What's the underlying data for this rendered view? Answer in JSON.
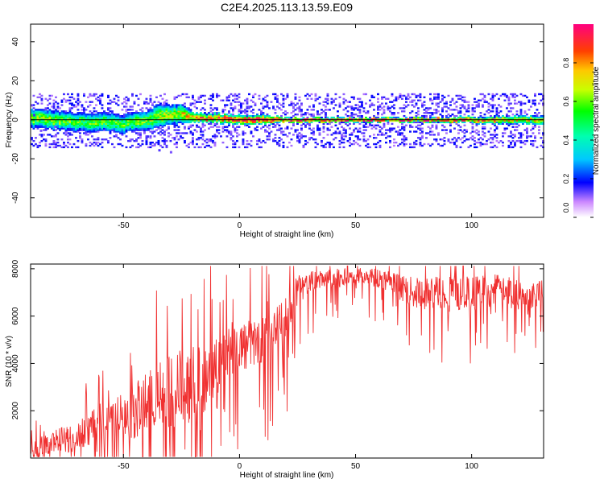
{
  "title": "C2E4.2025.113.13.59.E09",
  "chart_data": [
    {
      "type": "heatmap",
      "xlabel": "Height of straight line (km)",
      "ylabel": "Frequency (Hz)",
      "xlim": [
        -90,
        131
      ],
      "ylim": [
        -50,
        49
      ],
      "xticks": [
        -50,
        0,
        50,
        100
      ],
      "yticks": [
        -40,
        -20,
        0,
        20,
        40
      ],
      "colorbar": {
        "label": "Normalized spectral amplitude",
        "range": [
          0,
          1
        ],
        "ticks": [
          0.0,
          0.2,
          0.4,
          0.6,
          0.8
        ],
        "tick_labels": [
          "0.0",
          "0.2",
          "0.4",
          "0.6",
          "0.8"
        ]
      },
      "ridge": {
        "x": [
          -90,
          -80,
          -70,
          -60,
          -50,
          -40,
          -35,
          -30,
          -25,
          -20,
          -10,
          0,
          10,
          20,
          50,
          80,
          110,
          131
        ],
        "center_hz": [
          1,
          0,
          -1,
          -1,
          -2,
          0,
          2,
          3,
          3,
          1,
          1,
          0,
          0,
          0,
          0,
          0,
          0,
          0
        ],
        "spread_hz": [
          4,
          4,
          4,
          4,
          4,
          4,
          5,
          4,
          4,
          2,
          2,
          2,
          2,
          1,
          1,
          1,
          1.5,
          2
        ],
        "peak_amplitude": [
          0.6,
          0.6,
          0.55,
          0.55,
          0.55,
          0.6,
          0.65,
          0.65,
          0.7,
          0.8,
          0.85,
          0.95,
          0.95,
          0.95,
          0.95,
          0.9,
          0.8,
          0.65
        ]
      }
    },
    {
      "type": "line",
      "xlabel": "Height of straight line (km)",
      "ylabel": "SNR (10 * v/v)",
      "xlim": [
        -90,
        131
      ],
      "ylim": [
        0,
        8200
      ],
      "xticks": [
        -50,
        0,
        50,
        100
      ],
      "yticks": [
        2000,
        4000,
        6000,
        8000
      ],
      "color": "#f03030",
      "series": [
        {
          "x": [
            -90,
            -85,
            -80,
            -75,
            -70,
            -65,
            -60,
            -55,
            -50,
            -45,
            -40,
            -35,
            -30,
            -25,
            -20,
            -15,
            -10,
            -5,
            0,
            5,
            10,
            15,
            20,
            25,
            30,
            35,
            40,
            45,
            50,
            55,
            60,
            65,
            70,
            75,
            80,
            85,
            90,
            95,
            100,
            105,
            110,
            115,
            120,
            125,
            131
          ],
          "baseline": [
            300,
            500,
            700,
            800,
            900,
            1200,
            1400,
            1600,
            1800,
            2000,
            2300,
            2600,
            2800,
            3000,
            3200,
            3500,
            4000,
            4500,
            4700,
            4800,
            5000,
            5200,
            6000,
            7100,
            7400,
            7500,
            7600,
            7600,
            7700,
            7700,
            7600,
            7400,
            7200,
            7000,
            6900,
            7000,
            7100,
            7000,
            6900,
            7000,
            7100,
            7000,
            6900,
            6900,
            7100
          ],
          "amplitude": [
            500,
            600,
            700,
            800,
            900,
            1000,
            1200,
            1300,
            1500,
            1700,
            1900,
            2100,
            2300,
            2400,
            2400,
            2400,
            2000,
            1800,
            1600,
            1500,
            1500,
            1500,
            1400,
            1000,
            700,
            600,
            600,
            600,
            500,
            500,
            600,
            700,
            800,
            900,
            1000,
            1100,
            1100,
            1100,
            1100,
            1100,
            1000,
            1000,
            1000,
            900,
            800
          ]
        }
      ]
    }
  ]
}
